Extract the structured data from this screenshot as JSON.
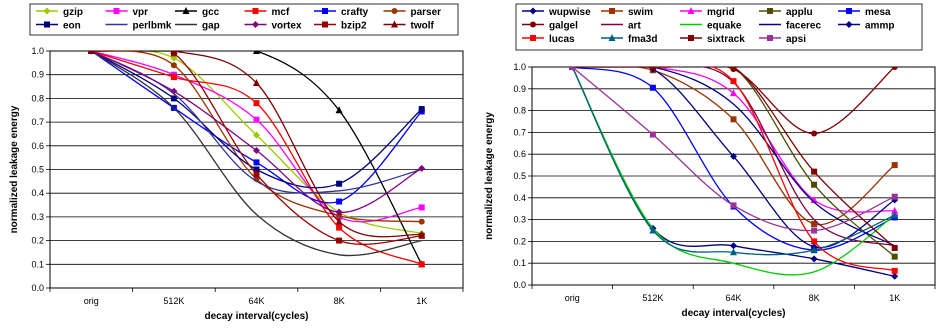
{
  "chart_data": [
    {
      "type": "line",
      "xlabel": "decay interval(cycles)",
      "ylabel": "normalized leakage energy",
      "categories": [
        "orig",
        "512K",
        "64K",
        "8K",
        "1K"
      ],
      "ylim": [
        0,
        1
      ],
      "yticks": [
        "0.0",
        "0.1",
        "0.2",
        "0.3",
        "0.4",
        "0.5",
        "0.6",
        "0.7",
        "0.8",
        "0.9",
        "1.0"
      ],
      "grid": true,
      "legend": "top",
      "series": [
        {
          "name": "gzip",
          "color": "#99cc00",
          "marker": "diamond",
          "values": [
            1.0,
            0.97,
            0.645,
            0.32,
            0.23
          ]
        },
        {
          "name": "vpr",
          "color": "#ff00ff",
          "marker": "square",
          "values": [
            1.0,
            0.9,
            0.71,
            0.3,
            0.34
          ]
        },
        {
          "name": "gcc",
          "color": "#000000",
          "marker": "triangle",
          "values": [
            1.0,
            1.0,
            1.0,
            0.75,
            0.1
          ]
        },
        {
          "name": "mcf",
          "color": "#ff0000",
          "marker": "square",
          "values": [
            1.0,
            0.89,
            0.78,
            0.255,
            0.1
          ]
        },
        {
          "name": "crafty",
          "color": "#0000ff",
          "marker": "square",
          "values": [
            1.0,
            0.76,
            0.53,
            0.365,
            0.745
          ]
        },
        {
          "name": "parser",
          "color": "#993300",
          "marker": "circle",
          "values": [
            1.0,
            0.94,
            0.46,
            0.305,
            0.28
          ]
        },
        {
          "name": "eon",
          "color": "#000080",
          "marker": "square",
          "values": [
            1.0,
            0.8,
            0.5,
            0.44,
            0.755
          ]
        },
        {
          "name": "perlbmk",
          "color": "#333399",
          "marker": "none",
          "values": [
            1.0,
            0.82,
            0.45,
            0.41,
            0.5
          ]
        },
        {
          "name": "gap",
          "color": "#333333",
          "marker": "none",
          "values": [
            1.0,
            0.76,
            0.31,
            0.14,
            0.2
          ]
        },
        {
          "name": "vortex",
          "color": "#800080",
          "marker": "diamond",
          "values": [
            1.0,
            0.83,
            0.58,
            0.32,
            0.505
          ]
        },
        {
          "name": "bzip2",
          "color": "#990000",
          "marker": "square",
          "values": [
            1.0,
            0.99,
            0.48,
            0.2,
            0.22
          ]
        },
        {
          "name": "twolf",
          "color": "#800000",
          "marker": "triangle",
          "values": [
            1.0,
            1.0,
            0.865,
            0.28,
            0.225
          ]
        }
      ]
    },
    {
      "type": "line",
      "xlabel": "decay interval(cycles)",
      "ylabel": "normalized leakage energy",
      "categories": [
        "orig",
        "512K",
        "64K",
        "8K",
        "1K"
      ],
      "ylim": [
        0,
        1
      ],
      "yticks": [
        "0.0",
        "0.1",
        "0.2",
        "0.3",
        "0.4",
        "0.5",
        "0.6",
        "0.7",
        "0.8",
        "0.9",
        "1.0"
      ],
      "grid": true,
      "legend": "top",
      "series": [
        {
          "name": "wupwise",
          "color": "#000080",
          "marker": "diamond",
          "values": [
            1.0,
            0.26,
            0.18,
            0.12,
            0.04
          ]
        },
        {
          "name": "swim",
          "color": "#993300",
          "marker": "square",
          "values": [
            1.0,
            0.985,
            0.76,
            0.28,
            0.55
          ]
        },
        {
          "name": "mgrid",
          "color": "#ff00ff",
          "marker": "triangle",
          "values": [
            1.0,
            1.0,
            0.88,
            0.39,
            0.34
          ]
        },
        {
          "name": "applu",
          "color": "#4d4d00",
          "marker": "square",
          "values": [
            1.0,
            1.0,
            1.0,
            0.46,
            0.13
          ]
        },
        {
          "name": "mesa",
          "color": "#0000ff",
          "marker": "square",
          "values": [
            1.0,
            0.905,
            0.36,
            0.16,
            0.31
          ]
        },
        {
          "name": "galgel",
          "color": "#800000",
          "marker": "circle",
          "values": [
            1.0,
            1.0,
            0.99,
            0.695,
            1.0
          ]
        },
        {
          "name": "art",
          "color": "#800040",
          "marker": "none",
          "values": [
            1.0,
            1.0,
            0.93,
            0.3,
            0.18
          ]
        },
        {
          "name": "equake",
          "color": "#00cc00",
          "marker": "none",
          "values": [
            1.0,
            0.26,
            0.1,
            0.06,
            0.32
          ]
        },
        {
          "name": "facerec",
          "color": "#000080",
          "marker": "none",
          "values": [
            1.0,
            1.0,
            0.83,
            0.38,
            0.18
          ]
        },
        {
          "name": "ammp",
          "color": "#000080",
          "marker": "diamond",
          "values": [
            1.0,
            0.99,
            0.59,
            0.175,
            0.39
          ]
        },
        {
          "name": "lucas",
          "color": "#ff0000",
          "marker": "square",
          "values": [
            1.0,
            1.0,
            0.935,
            0.2,
            0.065
          ]
        },
        {
          "name": "fma3d",
          "color": "#006080",
          "marker": "triangle",
          "values": [
            1.0,
            0.25,
            0.15,
            0.16,
            0.32
          ]
        },
        {
          "name": "sixtrack",
          "color": "#800000",
          "marker": "square",
          "values": [
            1.0,
            1.0,
            1.0,
            0.52,
            0.17
          ]
        },
        {
          "name": "apsi",
          "color": "#993399",
          "marker": "square",
          "values": [
            1.0,
            0.69,
            0.365,
            0.25,
            0.405
          ]
        }
      ]
    }
  ]
}
